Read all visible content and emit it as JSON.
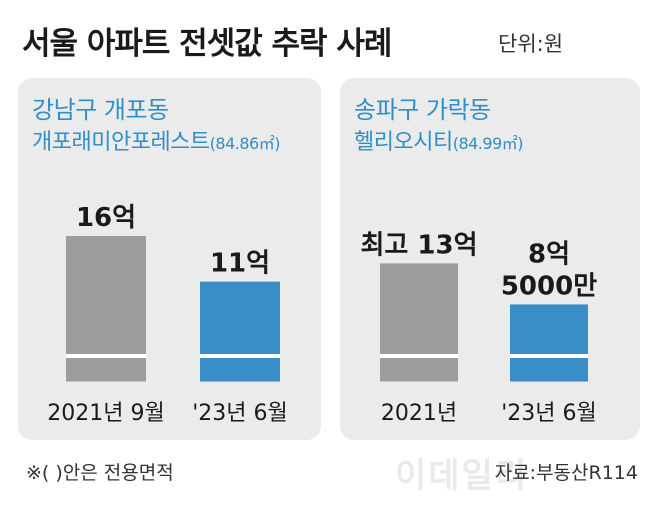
{
  "title": "서울 아파트 전셋값 추락 사례",
  "unit_label": "단위:원",
  "footnote": "※( )안은 전용면적",
  "source": "자료:부동산R114",
  "watermark": "이데일리",
  "colors": {
    "gray_bar": "#9d9d9d",
    "blue_bar": "#3a8ec8",
    "accent_text": "#2f8fc8",
    "panel_bg": "#ebebeb"
  },
  "chart_data": [
    {
      "type": "bar",
      "location": "강남구 개포동",
      "complex": "개포래미안포레스트",
      "area": "(84.86㎡)",
      "categories": [
        "2021년 9월",
        "'23년 6월"
      ],
      "values": [
        1600000000,
        1100000000
      ],
      "value_labels": [
        "16억",
        "11억"
      ],
      "bar_colors": [
        "#9d9d9d",
        "#3a8ec8"
      ]
    },
    {
      "type": "bar",
      "location": "송파구 가락동",
      "complex": "헬리오시티",
      "area": "(84.99㎡)",
      "categories": [
        "2021년",
        "'23년 6월"
      ],
      "values": [
        1300000000,
        850000000
      ],
      "value_labels": [
        "최고 13억",
        "8억\n5000만"
      ],
      "bar_colors": [
        "#9d9d9d",
        "#3a8ec8"
      ]
    }
  ]
}
